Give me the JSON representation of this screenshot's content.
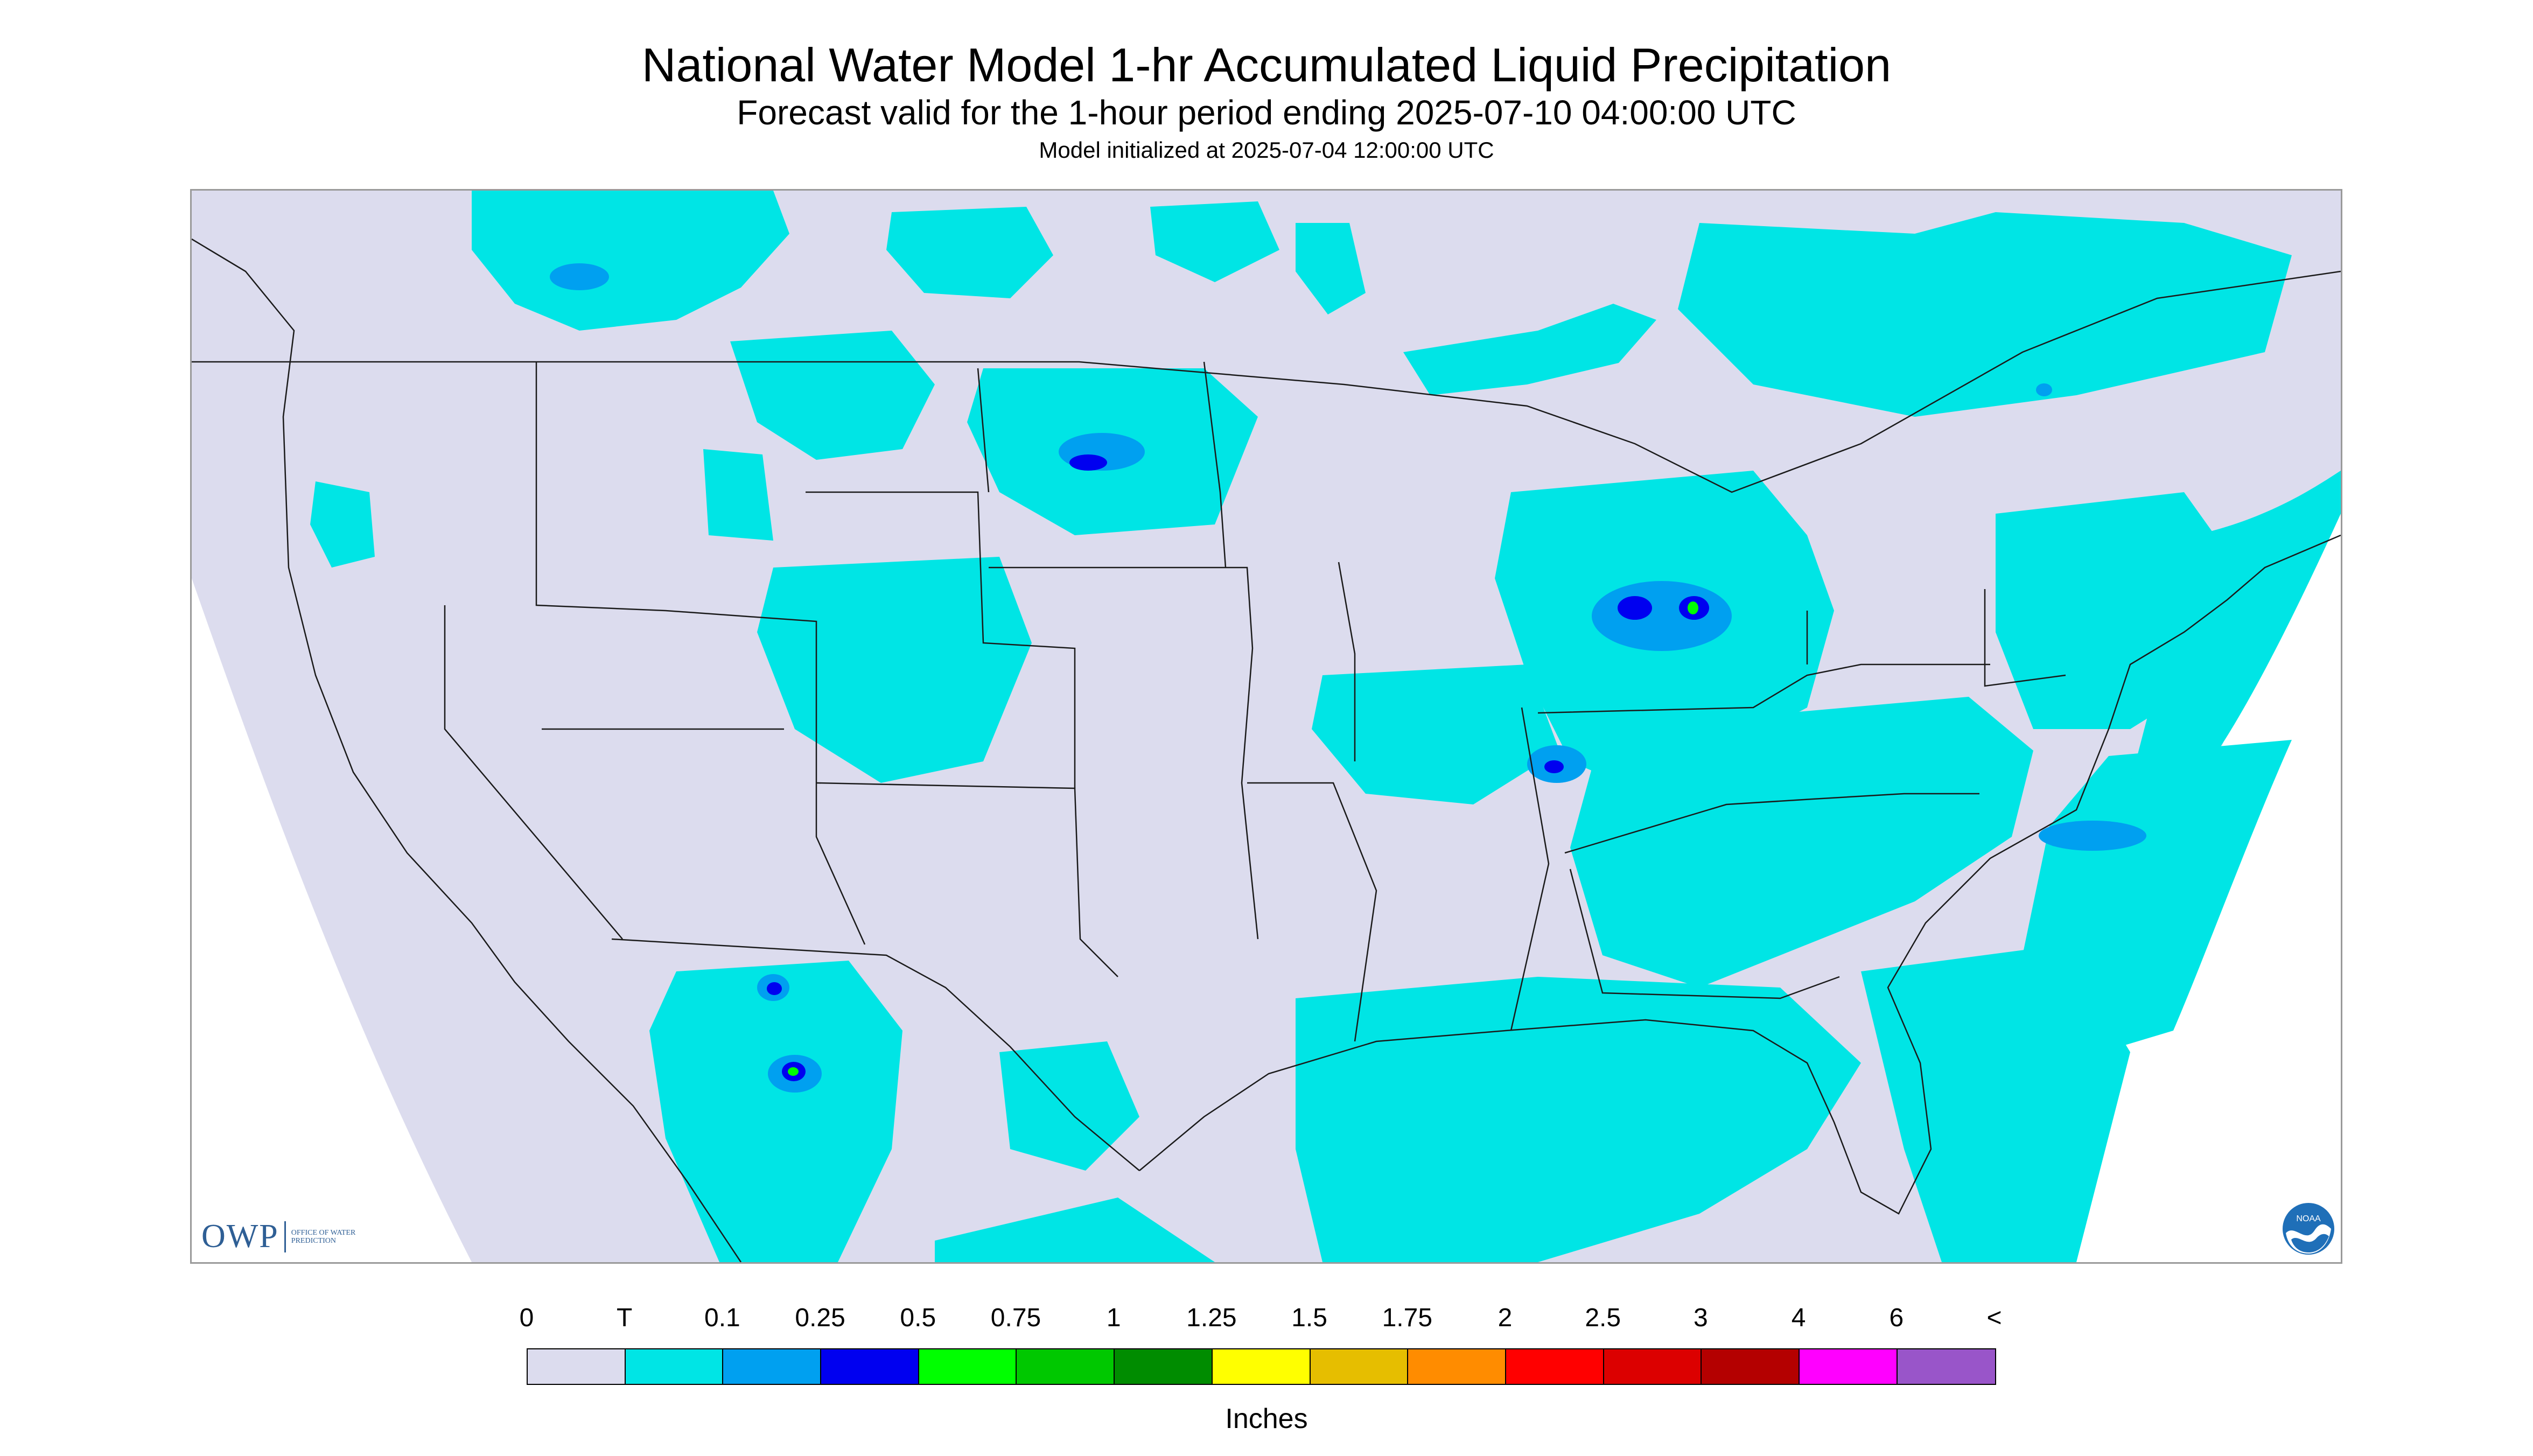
{
  "header": {
    "title": "National Water Model 1-hr Accumulated Liquid Precipitation",
    "subtitle": "Forecast valid for the 1-hour period ending 2025-07-10 04:00:00 UTC",
    "init_line": "Model initialized at 2025-07-04 12:00:00 UTC"
  },
  "map": {
    "region": "CONUS",
    "background_color": "#dcdcee",
    "outside_color": "#ffffff",
    "boundary_color": "#1a1a1a"
  },
  "logos": {
    "owp_text": "OWP",
    "owp_sub": "OFFICE OF WATER PREDICTION",
    "noaa_text": "NOAA"
  },
  "legend": {
    "labels": [
      "0",
      "T",
      "0.1",
      "0.25",
      "0.5",
      "0.75",
      "1",
      "1.25",
      "1.5",
      "1.75",
      "2",
      "2.5",
      "3",
      "4",
      "6",
      "<"
    ],
    "colors": [
      "#dcdcee",
      "#00e5e5",
      "#00a0f0",
      "#0000f0",
      "#00ff00",
      "#00c800",
      "#008c00",
      "#ffff00",
      "#e6be00",
      "#ff8c00",
      "#ff0000",
      "#dc0000",
      "#b40000",
      "#ff00ff",
      "#9955c9"
    ],
    "units": "Inches"
  }
}
